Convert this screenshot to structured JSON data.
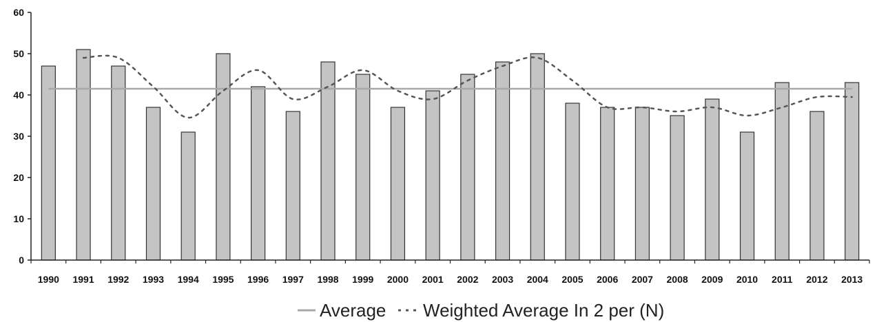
{
  "chart_data": {
    "type": "bar",
    "categories": [
      "1990",
      "1991",
      "1992",
      "1993",
      "1994",
      "1995",
      "1996",
      "1997",
      "1998",
      "1999",
      "2000",
      "2001",
      "2002",
      "2003",
      "2004",
      "2005",
      "2006",
      "2007",
      "2008",
      "2009",
      "2010",
      "2011",
      "2012",
      "2013"
    ],
    "values": [
      47,
      51,
      47,
      37,
      31,
      50,
      42,
      36,
      48,
      45,
      37,
      41,
      45,
      48,
      50,
      38,
      37,
      37,
      35,
      39,
      31,
      43,
      36,
      43
    ],
    "average": {
      "name": "Average",
      "value": 41.5
    },
    "weighted_average": {
      "name": "Weighted Average In 2 per (N)",
      "values": [
        null,
        49,
        49,
        42,
        34.5,
        41,
        46,
        39,
        42,
        46,
        41,
        39,
        43.5,
        47,
        49,
        43.5,
        37,
        37,
        36,
        37,
        35,
        37,
        39.5,
        39.5
      ]
    },
    "ylim": [
      0,
      60
    ],
    "yticks": [
      0,
      10,
      20,
      30,
      40,
      50,
      60
    ],
    "title": "",
    "xlabel": "",
    "ylabel": "",
    "grid": false,
    "legend_position": "bottom",
    "colors": {
      "bar_fill": "#c4c4c4",
      "bar_stroke": "#333333",
      "average_line": "#a8a8a8",
      "weighted_line": "#555555"
    }
  }
}
